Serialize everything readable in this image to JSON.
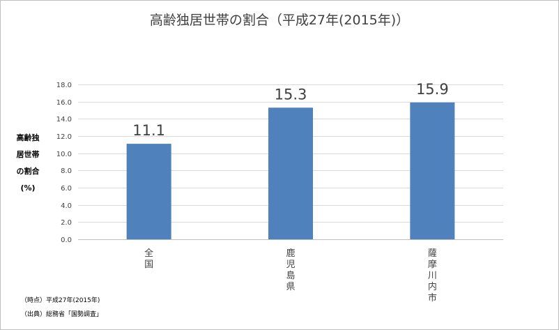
{
  "chart_data": {
    "type": "bar",
    "title": "高齢独居世帯の割合（平成27年(2015年)）",
    "ylabel_lines": [
      "高齢独",
      "居世帯",
      "の割合",
      "(%)"
    ],
    "categories": [
      "全国",
      "鹿児島県",
      "薩摩川内市"
    ],
    "values": [
      11.1,
      15.3,
      15.9
    ],
    "value_labels": [
      "11.1",
      "15.3",
      "15.9"
    ],
    "ylim": [
      0,
      18
    ],
    "yticks": [
      "0.0",
      "2.0",
      "4.0",
      "6.0",
      "8.0",
      "10.0",
      "12.0",
      "14.0",
      "16.0",
      "18.0"
    ],
    "grid": true,
    "bar_color": "#4f81bd",
    "grid_color": "#d9d9d9",
    "axis_color": "#bfbfbf"
  },
  "notes": {
    "time": "（時点）平成27年(2015年)",
    "source": "（出典）総務省「国勢調査」"
  }
}
